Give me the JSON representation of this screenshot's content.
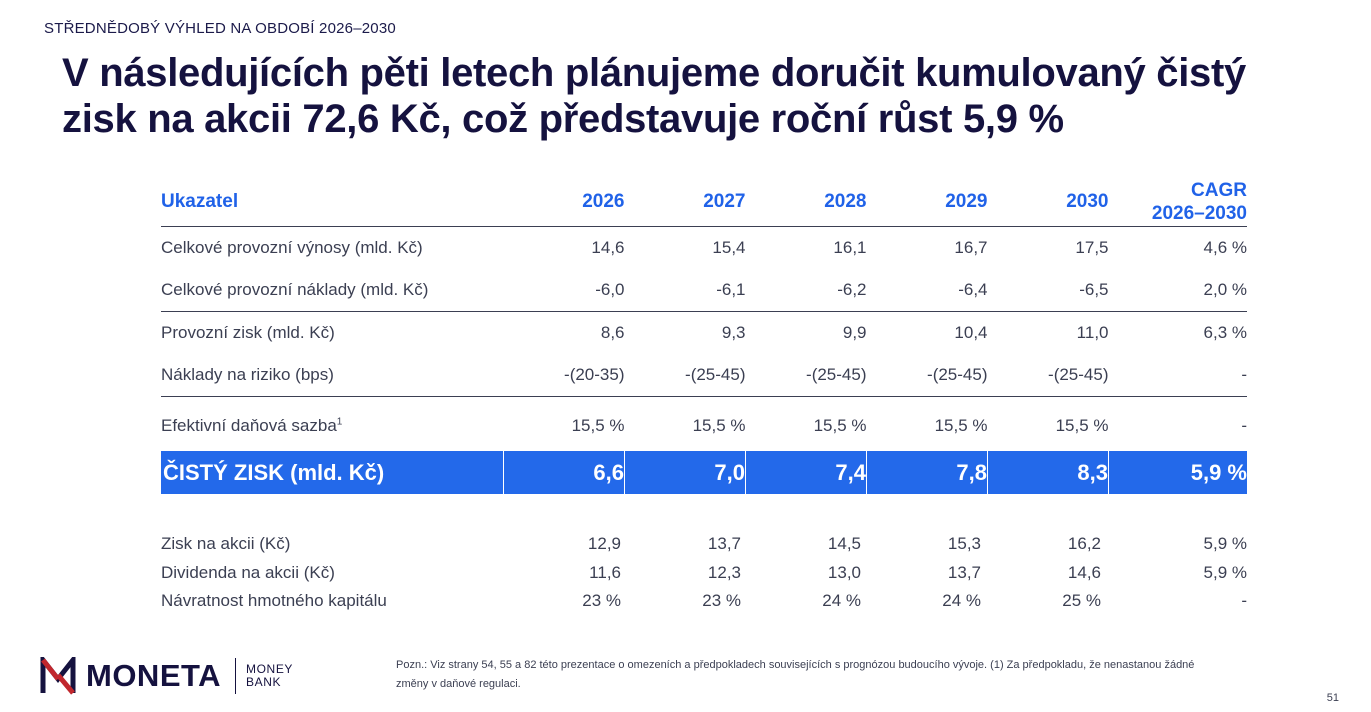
{
  "header": {
    "section_label": "STŘEDNĚDOBÝ VÝHLED NA OBDOBÍ 2026–2030",
    "title_line1": "V následujících pěti letech plánujeme doručit kumulovaný čistý",
    "title_line2": "zisk na akcii 72,6 Kč, což představuje roční růst 5,9 %"
  },
  "table": {
    "headers": [
      "Ukazatel",
      "2026",
      "2027",
      "2028",
      "2029",
      "2030"
    ],
    "cagr_header_line1": "CAGR",
    "cagr_header_line2": "2026–2030",
    "rows": [
      {
        "label": "Celkové provozní výnosy (mld. Kč)",
        "values": [
          "14,6",
          "15,4",
          "16,1",
          "16,7",
          "17,5",
          "4,6 %"
        ]
      },
      {
        "label": "Celkové provozní náklady (mld. Kč)",
        "values": [
          "-6,0",
          "-6,1",
          "-6,2",
          "-6,4",
          "-6,5",
          "2,0 %"
        ]
      },
      {
        "label": "Provozní zisk (mld. Kč)",
        "values": [
          "8,6",
          "9,3",
          "9,9",
          "10,4",
          "11,0",
          "6,3 %"
        ]
      },
      {
        "label": "Náklady na riziko (bps)",
        "values": [
          "-(20-35)",
          "-(25-45)",
          "-(25-45)",
          "-(25-45)",
          "-(25-45)",
          "-"
        ]
      },
      {
        "label": "Efektivní daňová sazba",
        "footnote": "1",
        "values": [
          "15,5 %",
          "15,5 %",
          "15,5 %",
          "15,5 %",
          "15,5 %",
          "-"
        ]
      }
    ],
    "highlight": {
      "label": "ČISTÝ ZISK (mld. Kč)",
      "values": [
        "6,6",
        "7,0",
        "7,4",
        "7,8",
        "8,3",
        "5,9 %"
      ]
    },
    "per_share_rows": [
      {
        "label": "Zisk na akcii (Kč)",
        "values": [
          "12,9",
          "13,7",
          "14,5",
          "15,3",
          "16,2",
          "5,9 %"
        ]
      },
      {
        "label": "Dividenda na akcii (Kč)",
        "values": [
          "11,6",
          "12,3",
          "13,0",
          "13,7",
          "14,6",
          "5,9 %"
        ]
      },
      {
        "label": "Návratnost hmotného kapitálu",
        "values": [
          "23 %",
          "23 %",
          "24 %",
          "24 %",
          "25 %",
          "-"
        ]
      }
    ]
  },
  "logo": {
    "word": "MONETA",
    "sub_line1": "MONEY",
    "sub_line2": "BANK",
    "colors": {
      "brand_dark": "#15123f",
      "brand_accent": "#c1272d"
    }
  },
  "footnote": "Pozn.: Viz strany 54, 55 a 82 této prezentace o omezeních a předpokladech souvisejících s prognózou budoucího vývoje. (1) Za předpokladu, že nenastanou žádné změny v daňové regulaci.",
  "page_number": "51",
  "colors": {
    "accent": "#2369ea",
    "header_text": "#2062e8",
    "title": "#15123f"
  }
}
